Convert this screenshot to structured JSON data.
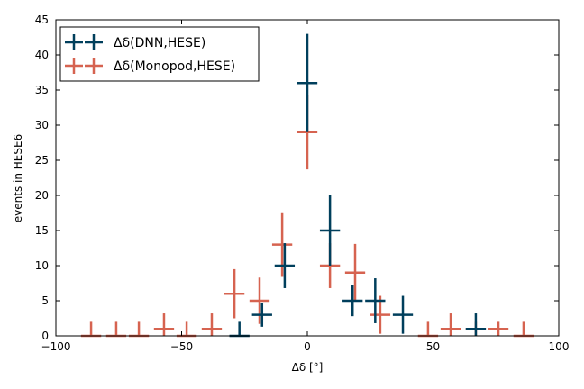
{
  "chart_data": {
    "type": "scatter",
    "xlabel": "Δδ [°]",
    "ylabel": "events in HESE6",
    "xlim": [
      -100,
      100
    ],
    "ylim": [
      0,
      45
    ],
    "x_ticks": [
      -100,
      -50,
      0,
      50,
      100
    ],
    "x_tick_labels": [
      "−100",
      "−50",
      "0",
      "50",
      "100"
    ],
    "y_ticks": [
      0,
      5,
      10,
      15,
      20,
      25,
      30,
      35,
      40,
      45
    ],
    "y_tick_labels": [
      "0",
      "5",
      "10",
      "15",
      "20",
      "25",
      "30",
      "35",
      "40",
      "45"
    ],
    "legend_position": "top-left",
    "grid": false,
    "bin_half_width": 4,
    "series": [
      {
        "name": "Δδ(DNN,HESE)",
        "color": "#003f5c",
        "points": [
          {
            "x": -27,
            "y": 0,
            "err": 2
          },
          {
            "x": -18,
            "y": 3,
            "err": 1.7
          },
          {
            "x": -9,
            "y": 10,
            "err": 3.2
          },
          {
            "x": 0,
            "y": 36,
            "err": 7
          },
          {
            "x": 9,
            "y": 15,
            "err": 5
          },
          {
            "x": 18,
            "y": 5,
            "err": 2.2
          },
          {
            "x": 27,
            "y": 5,
            "err": 3.2
          },
          {
            "x": 38,
            "y": 3,
            "err": 2.7
          },
          {
            "x": 67,
            "y": 1,
            "err": 2.2
          }
        ]
      },
      {
        "name": "Δδ(Monopod,HESE)",
        "color": "#d66350",
        "points": [
          {
            "x": -86,
            "y": 0,
            "err": 2
          },
          {
            "x": -76,
            "y": 0,
            "err": 2
          },
          {
            "x": -67,
            "y": 0,
            "err": 2
          },
          {
            "x": -57,
            "y": 1,
            "err": 2.2
          },
          {
            "x": -48,
            "y": 0,
            "err": 2
          },
          {
            "x": -38,
            "y": 1,
            "err": 2.2
          },
          {
            "x": -29,
            "y": 6,
            "err": 3.5
          },
          {
            "x": -19,
            "y": 5,
            "err": 3.3
          },
          {
            "x": -10,
            "y": 13,
            "err": 4.6
          },
          {
            "x": 0,
            "y": 29,
            "err": 5.3
          },
          {
            "x": 9,
            "y": 10,
            "err": 3.2
          },
          {
            "x": 19,
            "y": 9,
            "err": 4.1
          },
          {
            "x": 29,
            "y": 3,
            "err": 2.7
          },
          {
            "x": 48,
            "y": 0,
            "err": 2
          },
          {
            "x": 57,
            "y": 1,
            "err": 2.2
          },
          {
            "x": 67,
            "y": 1,
            "err": 1
          },
          {
            "x": 76,
            "y": 1,
            "err": 1
          },
          {
            "x": 86,
            "y": 0,
            "err": 2
          }
        ]
      }
    ]
  }
}
